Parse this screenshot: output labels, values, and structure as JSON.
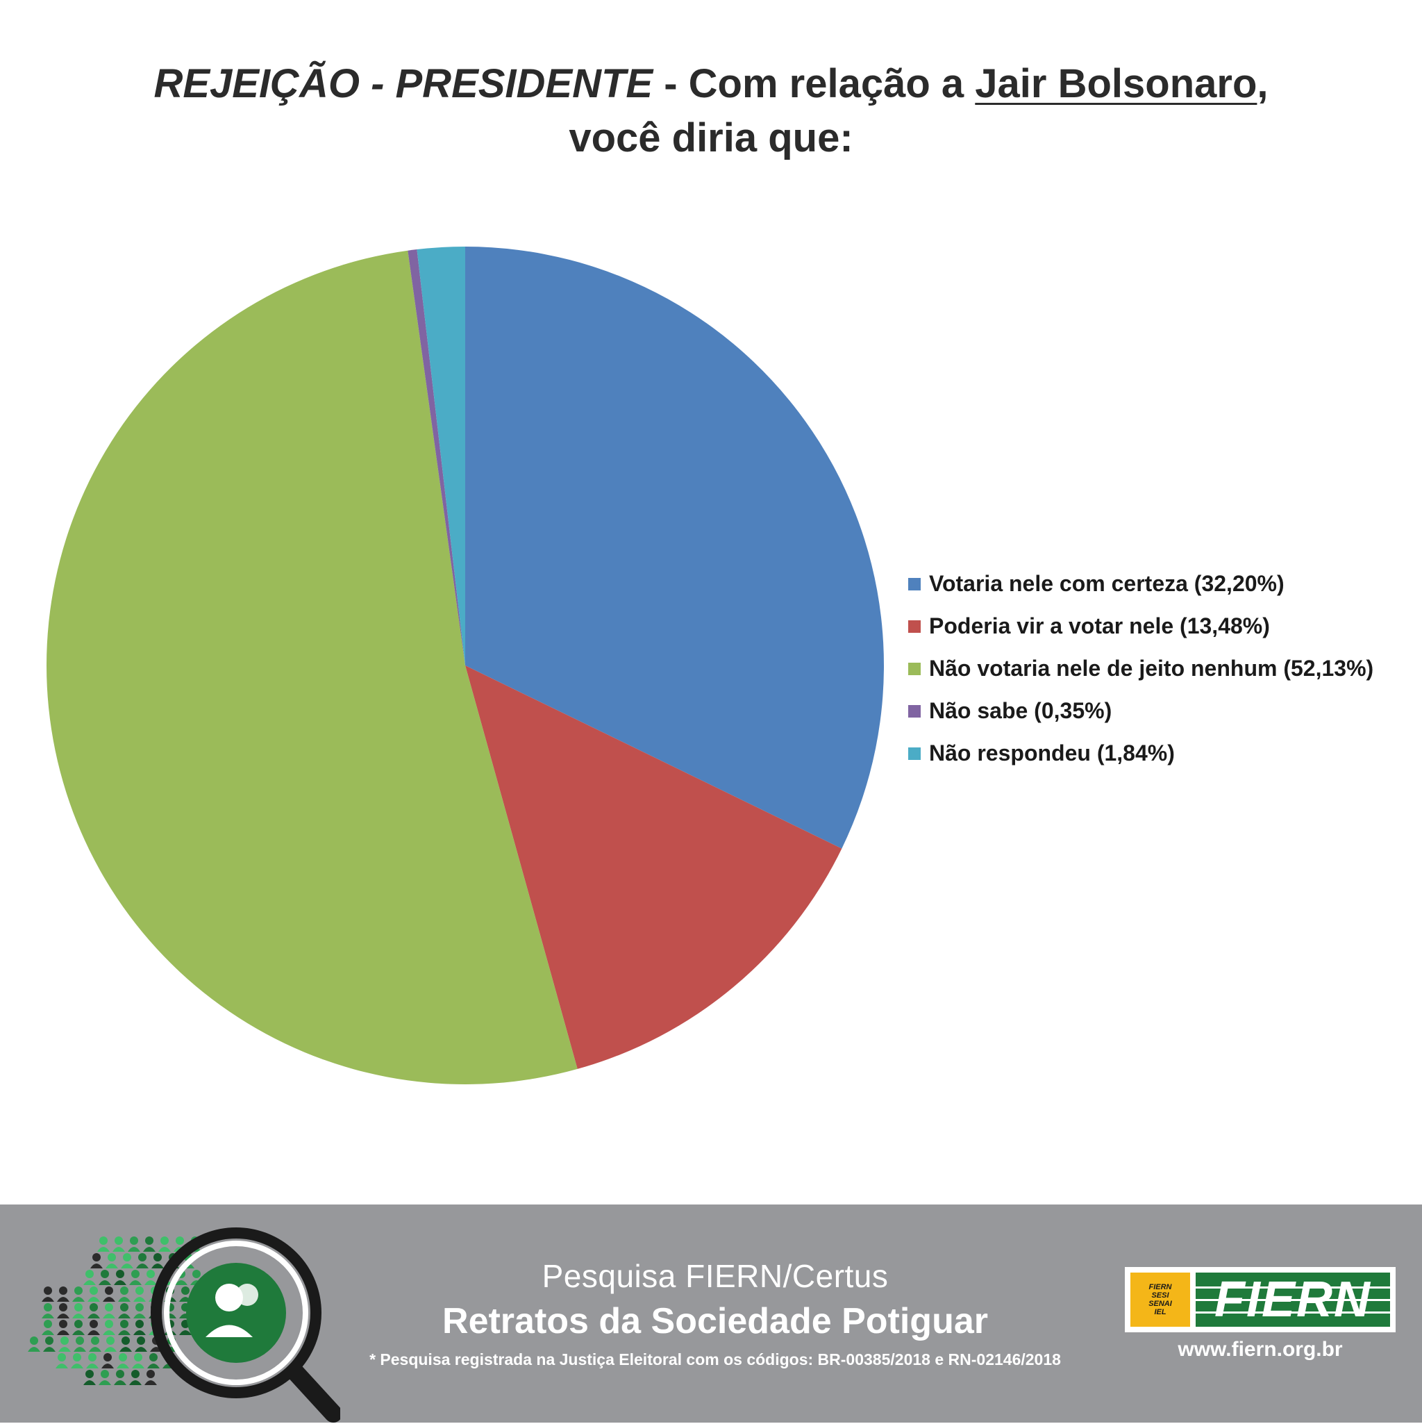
{
  "title": {
    "part_italic": "REJEIÇÃO - PRESIDENTE",
    "part_dash": " - Com relação a ",
    "part_underlined": "Jair Bolsonaro",
    "part_comma": ",",
    "line2": "você diria que:"
  },
  "chart_data": {
    "type": "pie",
    "title": "REJEIÇÃO - PRESIDENTE - Com relação a Jair Bolsonaro, você diria que:",
    "start_angle_deg": 0,
    "direction": "clockwise",
    "legend_position": "right",
    "slices": [
      {
        "label": "Votaria nele com certeza (32,20%)",
        "value": 32.2,
        "color": "#4f81bd"
      },
      {
        "label": "Poderia vir a votar nele (13,48%)",
        "value": 13.48,
        "color": "#c0504d"
      },
      {
        "label": "Não votaria nele de jeito nenhum (52,13%)",
        "value": 52.13,
        "color": "#9bbb59"
      },
      {
        "label": "Não sabe (0,35%)",
        "value": 0.35,
        "color": "#8064a2"
      },
      {
        "label": "Não respondeu (1,84%)",
        "value": 1.84,
        "color": "#4bacc6"
      }
    ]
  },
  "footer": {
    "line1": "Pesquisa FIERN/Certus",
    "line2": "Retratos da Sociedade Potiguar",
    "line3": "* Pesquisa registrada na Justiça Eleitoral com os códigos: BR-00385/2018 e RN-02146/2018",
    "logo_word": "FIERN",
    "logo_small": [
      "FIERN",
      "SESI",
      "SENAI",
      "IEL"
    ],
    "url": "www.fiern.org.br",
    "left_logo_icon": "people-magnifier-icon",
    "colors": {
      "footer_bg": "#97989b",
      "logo_green": "#1f7a3b",
      "logo_yellow": "#f4b618"
    }
  }
}
